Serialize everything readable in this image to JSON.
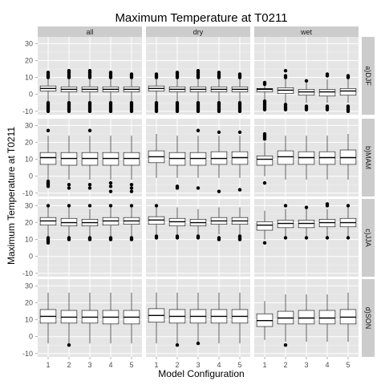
{
  "chart_data": {
    "type": "box",
    "title": "Maximum Temperature at T0211",
    "xlabel": "Model Configuration",
    "ylabel": "Maximum Temperature at T0211",
    "categories": [
      "1",
      "2",
      "3",
      "4",
      "5"
    ],
    "columns": [
      "all",
      "dry",
      "wet"
    ],
    "rows": [
      "a)DJF",
      "b)MAM",
      "c)JJA",
      "d)SON"
    ],
    "yticks": [
      -10,
      0,
      10,
      20,
      30
    ],
    "ylim": [
      -12,
      34
    ],
    "grid": true,
    "colors": {
      "panel_bg": "#e5e5e5",
      "grid_major": "#ffffff",
      "grid_minor": "#f2f2f2",
      "strip_bg": "#cccccc",
      "box_fill": "#ffffff",
      "box_line": "#000000"
    },
    "panels": [
      {
        "row": "a)DJF",
        "col": "all",
        "boxes": [
          {
            "x": "1",
            "whislo": -4,
            "q1": 2,
            "med": 3.5,
            "q3": 5,
            "whishi": 9,
            "outliers": [
              -10,
              -9,
              -8,
              -7,
              -6,
              -5,
              10,
              11,
              12,
              13
            ]
          },
          {
            "x": "2",
            "whislo": -4,
            "q1": 1.5,
            "med": 3,
            "q3": 4.5,
            "whishi": 9,
            "outliers": [
              -10,
              -9,
              -8,
              -7,
              -6,
              -5,
              10,
              11,
              12,
              13,
              14
            ]
          },
          {
            "x": "3",
            "whislo": -4,
            "q1": 1.5,
            "med": 3,
            "q3": 4.5,
            "whishi": 9,
            "outliers": [
              -10,
              -9,
              -8,
              -7,
              -6,
              -5,
              10,
              11,
              12,
              13,
              14
            ]
          },
          {
            "x": "4",
            "whislo": -4,
            "q1": 1.5,
            "med": 3,
            "q3": 4.5,
            "whishi": 9,
            "outliers": [
              -10,
              -9,
              -8,
              -7,
              -6,
              -5,
              10,
              11,
              12,
              13
            ]
          },
          {
            "x": "5",
            "whislo": -4,
            "q1": 1.5,
            "med": 3,
            "q3": 4.5,
            "whishi": 9,
            "outliers": [
              -10,
              -9,
              -8,
              -7,
              -6,
              -5,
              10,
              11,
              12
            ]
          }
        ]
      },
      {
        "row": "a)DJF",
        "col": "dry",
        "boxes": [
          {
            "x": "1",
            "whislo": -4,
            "q1": 2,
            "med": 3.5,
            "q3": 5,
            "whishi": 9,
            "outliers": [
              -10,
              -9,
              -8,
              -7,
              -6,
              -5,
              10,
              11,
              12
            ]
          },
          {
            "x": "2",
            "whislo": -4,
            "q1": 1.5,
            "med": 3,
            "q3": 4.5,
            "whishi": 9,
            "outliers": [
              -10,
              -9,
              -8,
              -7,
              -6,
              -5,
              10,
              11,
              12,
              13
            ]
          },
          {
            "x": "3",
            "whislo": -4,
            "q1": 1.5,
            "med": 3,
            "q3": 4.5,
            "whishi": 9,
            "outliers": [
              -10,
              -9,
              -8,
              -7,
              -6,
              -5,
              10,
              11,
              12,
              13,
              14
            ]
          },
          {
            "x": "4",
            "whislo": -4,
            "q1": 1.5,
            "med": 3,
            "q3": 4.5,
            "whishi": 9,
            "outliers": [
              -10,
              -9,
              -8,
              -7,
              -6,
              -5,
              10,
              11,
              12,
              13
            ]
          },
          {
            "x": "5",
            "whislo": -4,
            "q1": 1.5,
            "med": 3,
            "q3": 4.5,
            "whishi": 9,
            "outliers": [
              -10,
              -9,
              -8,
              -7,
              -6,
              -5,
              10,
              11,
              12
            ]
          }
        ]
      },
      {
        "row": "a)DJF",
        "col": "wet",
        "boxes": [
          {
            "x": "1",
            "whislo": -3,
            "q1": 1.5,
            "med": 3,
            "q3": 3.5,
            "whishi": 5,
            "outliers": [
              -9,
              -8,
              -7,
              -6,
              -5,
              -4,
              6,
              7
            ]
          },
          {
            "x": "2",
            "whislo": -5,
            "q1": 0.5,
            "med": 2.5,
            "q3": 4,
            "whishi": 9,
            "outliers": [
              -9,
              -8,
              -7,
              -6,
              10,
              11,
              14
            ]
          },
          {
            "x": "3",
            "whislo": -5,
            "q1": -0.5,
            "med": 1.5,
            "q3": 3,
            "whishi": 7,
            "outliers": [
              -9,
              -8,
              -7,
              8
            ]
          },
          {
            "x": "4",
            "whislo": -5,
            "q1": -1,
            "med": 1.5,
            "q3": 3,
            "whishi": 9,
            "outliers": [
              -9,
              -8,
              -7,
              11,
              12
            ]
          },
          {
            "x": "5",
            "whislo": -5,
            "q1": -0.5,
            "med": 2,
            "q3": 3.5,
            "whishi": 9,
            "outliers": [
              -10,
              -9,
              -8,
              -7,
              10,
              11
            ]
          }
        ]
      },
      {
        "row": "b)MAM",
        "col": "all",
        "boxes": [
          {
            "x": "1",
            "whislo": -2,
            "q1": 7,
            "med": 11,
            "q3": 14,
            "whishi": 24,
            "outliers": [
              -6,
              -5,
              -4,
              -3,
              27
            ]
          },
          {
            "x": "2",
            "whislo": -2,
            "q1": 6.5,
            "med": 10.5,
            "q3": 14,
            "whishi": 24,
            "outliers": [
              -7,
              -5
            ]
          },
          {
            "x": "3",
            "whislo": -2,
            "q1": 6.5,
            "med": 10.5,
            "q3": 14,
            "whishi": 24,
            "outliers": [
              -7,
              -5,
              27
            ]
          },
          {
            "x": "4",
            "whislo": -2,
            "q1": 6.5,
            "med": 10.5,
            "q3": 14,
            "whishi": 24,
            "outliers": [
              -9,
              -6,
              -4
            ]
          },
          {
            "x": "5",
            "whislo": -2,
            "q1": 6.5,
            "med": 10.5,
            "q3": 14,
            "whishi": 24,
            "outliers": [
              -9,
              -7,
              -5
            ]
          }
        ]
      },
      {
        "row": "b)MAM",
        "col": "dry",
        "boxes": [
          {
            "x": "1",
            "whislo": -1,
            "q1": 8,
            "med": 11.5,
            "q3": 15,
            "whishi": 25,
            "outliers": []
          },
          {
            "x": "2",
            "whislo": -1,
            "q1": 6.5,
            "med": 10.5,
            "q3": 14,
            "whishi": 24,
            "outliers": [
              -7,
              -6
            ]
          },
          {
            "x": "3",
            "whislo": -1,
            "q1": 6.5,
            "med": 10.5,
            "q3": 14,
            "whishi": 24,
            "outliers": [
              -7,
              27
            ]
          },
          {
            "x": "4",
            "whislo": -1,
            "q1": 7,
            "med": 10.5,
            "q3": 14.5,
            "whishi": 24,
            "outliers": [
              -9,
              26
            ]
          },
          {
            "x": "5",
            "whislo": -1,
            "q1": 7,
            "med": 11,
            "q3": 14.5,
            "whishi": 24,
            "outliers": [
              -8,
              26
            ]
          }
        ]
      },
      {
        "row": "b)MAM",
        "col": "wet",
        "boxes": [
          {
            "x": "1",
            "whislo": 0,
            "q1": 6.5,
            "med": 10,
            "q3": 12,
            "whishi": 20,
            "outliers": [
              -4,
              22,
              23,
              24,
              25
            ]
          },
          {
            "x": "2",
            "whislo": -2,
            "q1": 7,
            "med": 11.5,
            "q3": 15,
            "whishi": 24,
            "outliers": []
          },
          {
            "x": "3",
            "whislo": -2,
            "q1": 7,
            "med": 11,
            "q3": 14.5,
            "whishi": 24,
            "outliers": []
          },
          {
            "x": "4",
            "whislo": -2,
            "q1": 7,
            "med": 11,
            "q3": 14.5,
            "whishi": 24,
            "outliers": []
          },
          {
            "x": "5",
            "whislo": -2,
            "q1": 7,
            "med": 11,
            "q3": 15.5,
            "whishi": 25,
            "outliers": []
          }
        ]
      },
      {
        "row": "c)JJA",
        "col": "all",
        "boxes": [
          {
            "x": "1",
            "whislo": 12,
            "q1": 18.5,
            "med": 21,
            "q3": 23,
            "whishi": 29,
            "outliers": [
              8,
              9,
              10,
              11,
              30
            ]
          },
          {
            "x": "2",
            "whislo": 12,
            "q1": 18,
            "med": 20,
            "q3": 22.5,
            "whishi": 29,
            "outliers": [
              10,
              11,
              30
            ]
          },
          {
            "x": "3",
            "whislo": 12,
            "q1": 18,
            "med": 20,
            "q3": 22,
            "whishi": 28,
            "outliers": [
              10,
              11,
              30
            ]
          },
          {
            "x": "4",
            "whislo": 12,
            "q1": 18.5,
            "med": 21,
            "q3": 23,
            "whishi": 29,
            "outliers": [
              10,
              11,
              30
            ]
          },
          {
            "x": "5",
            "whislo": 12,
            "q1": 19,
            "med": 21,
            "q3": 23,
            "whishi": 29,
            "outliers": [
              10,
              11,
              30
            ]
          }
        ]
      },
      {
        "row": "c)JJA",
        "col": "dry",
        "boxes": [
          {
            "x": "1",
            "whislo": 13,
            "q1": 19,
            "med": 21.5,
            "q3": 23.5,
            "whishi": 29,
            "outliers": [
              11,
              12,
              30
            ]
          },
          {
            "x": "2",
            "whislo": 13,
            "q1": 18,
            "med": 20.5,
            "q3": 22.5,
            "whishi": 29,
            "outliers": [
              11,
              12
            ]
          },
          {
            "x": "3",
            "whislo": 13,
            "q1": 18,
            "med": 20,
            "q3": 22,
            "whishi": 28,
            "outliers": [
              11,
              12
            ]
          },
          {
            "x": "4",
            "whislo": 13,
            "q1": 19,
            "med": 21,
            "q3": 23,
            "whishi": 29,
            "outliers": [
              10,
              11
            ]
          },
          {
            "x": "5",
            "whislo": 13,
            "q1": 19,
            "med": 21,
            "q3": 23,
            "whishi": 29,
            "outliers": [
              10,
              11,
              12
            ]
          }
        ]
      },
      {
        "row": "c)JJA",
        "col": "wet",
        "boxes": [
          {
            "x": "1",
            "whislo": 10,
            "q1": 15.5,
            "med": 18.5,
            "q3": 20.5,
            "whishi": 27,
            "outliers": [
              8
            ]
          },
          {
            "x": "2",
            "whislo": 12,
            "q1": 17,
            "med": 19.5,
            "q3": 21.5,
            "whishi": 28,
            "outliers": [
              11,
              30
            ]
          },
          {
            "x": "3",
            "whislo": 12,
            "q1": 17,
            "med": 19.5,
            "q3": 21.5,
            "whishi": 28,
            "outliers": [
              11,
              29
            ]
          },
          {
            "x": "4",
            "whislo": 12,
            "q1": 17.5,
            "med": 20,
            "q3": 22,
            "whishi": 28,
            "outliers": [
              11,
              30,
              31
            ]
          },
          {
            "x": "5",
            "whislo": 12,
            "q1": 17.5,
            "med": 20,
            "q3": 22.5,
            "whishi": 29,
            "outliers": [
              11,
              30
            ]
          }
        ]
      },
      {
        "row": "d)SON",
        "col": "all",
        "boxes": [
          {
            "x": "1",
            "whislo": -4,
            "q1": 8,
            "med": 12,
            "q3": 16,
            "whishi": 26,
            "outliers": []
          },
          {
            "x": "2",
            "whislo": -4,
            "q1": 8,
            "med": 11.5,
            "q3": 15.5,
            "whishi": 26,
            "outliers": [
              -5
            ]
          },
          {
            "x": "3",
            "whislo": -4,
            "q1": 8,
            "med": 11.5,
            "q3": 15.5,
            "whishi": 26,
            "outliers": []
          },
          {
            "x": "4",
            "whislo": -4,
            "q1": 7.5,
            "med": 11.5,
            "q3": 15.5,
            "whishi": 26,
            "outliers": []
          },
          {
            "x": "5",
            "whislo": -4,
            "q1": 7.5,
            "med": 11.5,
            "q3": 15.5,
            "whishi": 26,
            "outliers": []
          }
        ]
      },
      {
        "row": "d)SON",
        "col": "dry",
        "boxes": [
          {
            "x": "1",
            "whislo": -4,
            "q1": 8.5,
            "med": 12.5,
            "q3": 16.5,
            "whishi": 26,
            "outliers": []
          },
          {
            "x": "2",
            "whislo": -4,
            "q1": 8,
            "med": 12,
            "q3": 16,
            "whishi": 26,
            "outliers": [
              -5
            ]
          },
          {
            "x": "3",
            "whislo": -4,
            "q1": 8,
            "med": 12,
            "q3": 16,
            "whishi": 26,
            "outliers": [
              -4
            ]
          },
          {
            "x": "4",
            "whislo": -4,
            "q1": 8,
            "med": 12,
            "q3": 16,
            "whishi": 26,
            "outliers": []
          },
          {
            "x": "5",
            "whislo": -4,
            "q1": 8,
            "med": 12,
            "q3": 16,
            "whishi": 26,
            "outliers": []
          }
        ]
      },
      {
        "row": "d)SON",
        "col": "wet",
        "boxes": [
          {
            "x": "1",
            "whislo": -2,
            "q1": 6,
            "med": 9.5,
            "q3": 13.5,
            "whishi": 21,
            "outliers": []
          },
          {
            "x": "2",
            "whislo": -3,
            "q1": 7.5,
            "med": 11,
            "q3": 15,
            "whishi": 25,
            "outliers": [
              -5
            ]
          },
          {
            "x": "3",
            "whislo": -3,
            "q1": 7.5,
            "med": 11,
            "q3": 15.5,
            "whishi": 25,
            "outliers": []
          },
          {
            "x": "4",
            "whislo": -3,
            "q1": 7.5,
            "med": 11,
            "q3": 15.5,
            "whishi": 25,
            "outliers": []
          },
          {
            "x": "5",
            "whislo": -3,
            "q1": 7.5,
            "med": 11.5,
            "q3": 16,
            "whishi": 26,
            "outliers": []
          }
        ]
      }
    ]
  }
}
